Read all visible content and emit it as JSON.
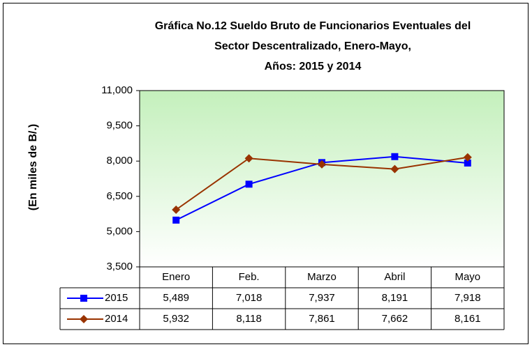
{
  "chart_data": {
    "type": "line",
    "title": [
      "Gráfica No.12 Sueldo Bruto de Funcionarios Eventuales del",
      "Sector Descentralizado, Enero-Mayo,",
      "Años: 2015 y 2014"
    ],
    "y_label": "(En miles de B/.)",
    "categories": [
      "Enero",
      "Feb.",
      "Marzo",
      "Abril",
      "Mayo"
    ],
    "series": [
      {
        "name": "2015",
        "color": "#0000ff",
        "marker": "square",
        "values": [
          5489,
          7018,
          7937,
          8191,
          7918
        ],
        "value_labels": [
          "5,489",
          "7,018",
          "7,937",
          "8,191",
          "7,918"
        ]
      },
      {
        "name": "2014",
        "color": "#993300",
        "marker": "diamond",
        "values": [
          5932,
          8118,
          7861,
          7662,
          8161
        ],
        "value_labels": [
          "5,932",
          "8,118",
          "7,861",
          "7,662",
          "8,161"
        ]
      }
    ],
    "ylim": [
      3500,
      11000
    ],
    "yticks": [
      {
        "value": 3500,
        "label": "3,500"
      },
      {
        "value": 5000,
        "label": "5,000"
      },
      {
        "value": 6500,
        "label": "6,500"
      },
      {
        "value": 8000,
        "label": "8,000"
      },
      {
        "value": 9500,
        "label": "9,500"
      },
      {
        "value": 11000,
        "label": "11,000"
      }
    ]
  }
}
